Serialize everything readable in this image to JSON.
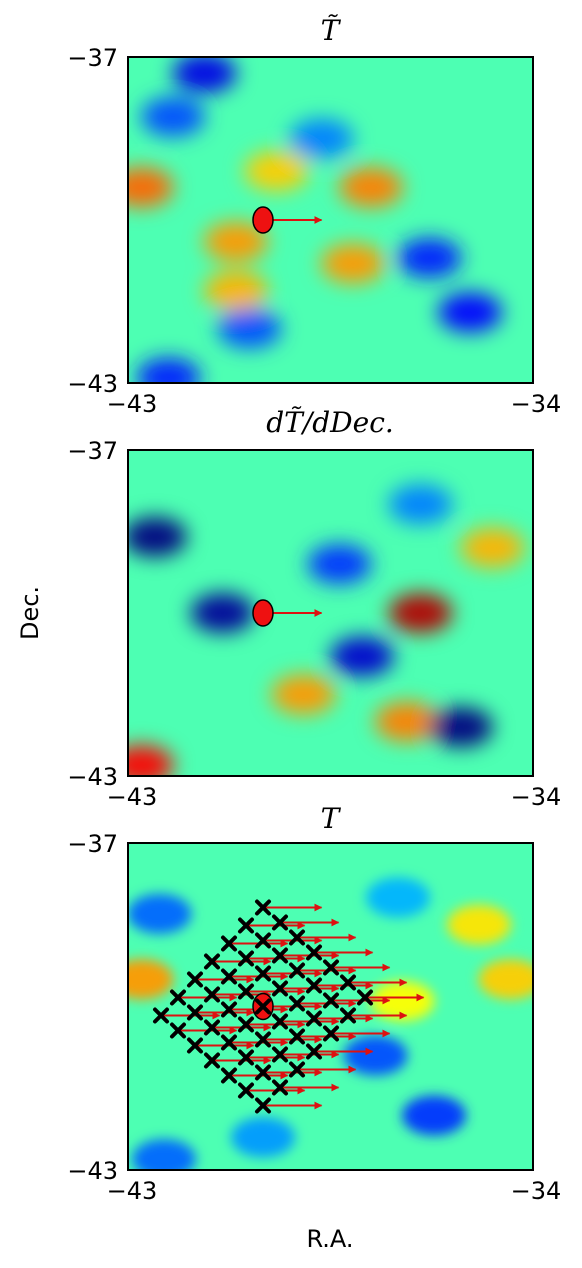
{
  "figure": {
    "xlabel": "R.A.",
    "ylabel": "Dec."
  },
  "colors": {
    "colormap": "jet",
    "marker_fill": "#ee1111",
    "arrow": "#dd1111",
    "cross": "#000000"
  },
  "chart_data": [
    {
      "type": "heatmap",
      "title": "T̃",
      "xlim": [
        -43,
        -34
      ],
      "ylim": [
        -43,
        -37
      ],
      "x_tick_labels": [
        "−43",
        "−34"
      ],
      "y_tick_labels": [
        "−37",
        "−43"
      ],
      "source": {
        "ra": -40,
        "dec": -40,
        "arrow_ra_length": 1.3
      },
      "features": [
        {
          "ra": -42.7,
          "dec": -39.4,
          "value": 0.65
        },
        {
          "ra": -39.7,
          "dec": -39.1,
          "value": 0.45
        },
        {
          "ra": -37.6,
          "dec": -39.4,
          "value": 0.6
        },
        {
          "ra": -40.6,
          "dec": -40.4,
          "value": 0.55
        },
        {
          "ra": -38.0,
          "dec": -40.8,
          "value": 0.55
        },
        {
          "ra": -40.6,
          "dec": -41.3,
          "value": 0.5
        },
        {
          "ra": -41.3,
          "dec": -37.3,
          "value": -0.7
        },
        {
          "ra": -42.0,
          "dec": -38.1,
          "value": -0.5
        },
        {
          "ra": -38.7,
          "dec": -38.5,
          "value": -0.4
        },
        {
          "ra": -36.3,
          "dec": -40.7,
          "value": -0.6
        },
        {
          "ra": -35.4,
          "dec": -41.7,
          "value": -0.65
        },
        {
          "ra": -40.3,
          "dec": -42.0,
          "value": -0.5
        },
        {
          "ra": -42.1,
          "dec": -42.9,
          "value": -0.6
        }
      ]
    },
    {
      "type": "heatmap",
      "title": "dT̃/dDec.",
      "xlim": [
        -43,
        -34
      ],
      "ylim": [
        -43,
        -37
      ],
      "x_tick_labels": [
        "−43",
        "−34"
      ],
      "y_tick_labels": [
        "−37",
        "−43"
      ],
      "source": {
        "ra": -40,
        "dec": -40,
        "arrow_ra_length": 1.3
      },
      "features": [
        {
          "ra": -36.5,
          "dec": -40.0,
          "value": 1.0
        },
        {
          "ra": -42.7,
          "dec": -42.8,
          "value": 0.85
        },
        {
          "ra": -36.8,
          "dec": -42.0,
          "value": 0.6
        },
        {
          "ra": -39.1,
          "dec": -41.5,
          "value": 0.55
        },
        {
          "ra": -34.9,
          "dec": -38.8,
          "value": 0.5
        },
        {
          "ra": -42.4,
          "dec": -38.6,
          "value": -0.9
        },
        {
          "ra": -40.9,
          "dec": -40.0,
          "value": -0.85
        },
        {
          "ra": -37.8,
          "dec": -40.8,
          "value": -0.75
        },
        {
          "ra": -35.6,
          "dec": -42.1,
          "value": -0.95
        },
        {
          "ra": -38.3,
          "dec": -39.1,
          "value": -0.55
        },
        {
          "ra": -36.5,
          "dec": -38.0,
          "value": -0.4
        }
      ]
    },
    {
      "type": "heatmap",
      "title": "T",
      "xlim": [
        -43,
        -34
      ],
      "ylim": [
        -43,
        -37
      ],
      "x_tick_labels": [
        "−43",
        "−34"
      ],
      "y_tick_labels": [
        "−37",
        "−43"
      ],
      "source": {
        "ra": -40,
        "dec": -40
      },
      "stack_grid": {
        "center_ra": -40,
        "center_dec": -40,
        "rows": 7,
        "cols": 7,
        "arrow_ra_length": 1.3
      },
      "features": [
        {
          "ra": -42.7,
          "dec": -39.5,
          "value": 0.55
        },
        {
          "ra": -35.2,
          "dec": -38.5,
          "value": 0.4
        },
        {
          "ra": -34.5,
          "dec": -39.5,
          "value": 0.45
        },
        {
          "ra": -36.9,
          "dec": -39.9,
          "value": 0.35
        },
        {
          "ra": -42.3,
          "dec": -38.3,
          "value": -0.45
        },
        {
          "ra": -37.5,
          "dec": -40.9,
          "value": -0.5
        },
        {
          "ra": -36.2,
          "dec": -42.0,
          "value": -0.55
        },
        {
          "ra": -40.0,
          "dec": -42.4,
          "value": -0.35
        },
        {
          "ra": -42.2,
          "dec": -42.8,
          "value": -0.45
        },
        {
          "ra": -37.0,
          "dec": -38.0,
          "value": -0.3
        }
      ]
    }
  ]
}
